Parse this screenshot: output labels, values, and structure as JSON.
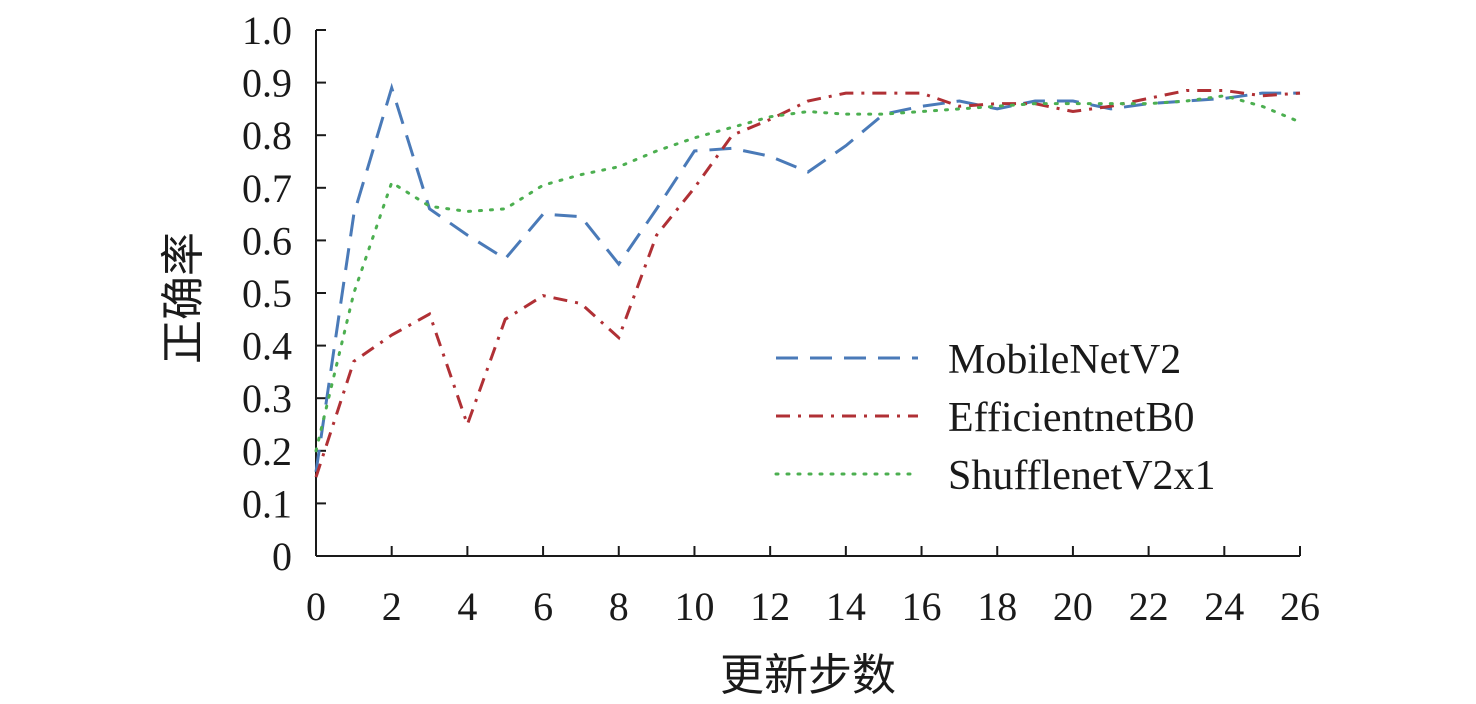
{
  "chart_data": {
    "type": "line",
    "xlabel": "更新步数",
    "ylabel": "正确率",
    "xlim": [
      0,
      26
    ],
    "ylim": [
      0,
      1.0
    ],
    "x_ticks": [
      0,
      2,
      4,
      6,
      8,
      10,
      12,
      14,
      16,
      18,
      20,
      22,
      24,
      26
    ],
    "x_tick_labels": [
      "0",
      "2",
      "4",
      "6",
      "8",
      "10",
      "12",
      "14",
      "16",
      "18",
      "20",
      "22",
      "24",
      "26"
    ],
    "y_ticks": [
      0,
      0.1,
      0.2,
      0.3,
      0.4,
      0.5,
      0.6,
      0.7,
      0.8,
      0.9,
      1.0
    ],
    "y_tick_labels": [
      "0",
      "0.1",
      "0.2",
      "0.3",
      "0.4",
      "0.5",
      "0.6",
      "0.7",
      "0.8",
      "0.9",
      "1.0"
    ],
    "grid": false,
    "legend_position": "right",
    "x": [
      0,
      1,
      2,
      3,
      4,
      5,
      6,
      7,
      8,
      9,
      10,
      11,
      12,
      13,
      14,
      15,
      16,
      17,
      18,
      19,
      20,
      21,
      22,
      23,
      24,
      25,
      26
    ],
    "series": [
      {
        "name": "MobileNetV2",
        "color": "#4a7ab8",
        "dash": "dashed",
        "values": [
          0.16,
          0.65,
          0.89,
          0.66,
          0.61,
          0.565,
          0.65,
          0.645,
          0.555,
          0.66,
          0.77,
          0.775,
          0.76,
          0.73,
          0.78,
          0.84,
          0.855,
          0.865,
          0.85,
          0.865,
          0.865,
          0.85,
          0.86,
          0.865,
          0.87,
          0.88,
          0.88
        ]
      },
      {
        "name": "EfficientnetB0",
        "color": "#b03035",
        "dash": "dashdot",
        "values": [
          0.15,
          0.37,
          0.42,
          0.46,
          0.25,
          0.45,
          0.495,
          0.48,
          0.415,
          0.61,
          0.7,
          0.8,
          0.83,
          0.865,
          0.88,
          0.88,
          0.88,
          0.855,
          0.86,
          0.86,
          0.845,
          0.855,
          0.87,
          0.885,
          0.885,
          0.875,
          0.88
        ]
      },
      {
        "name": "ShufflenetV2x1",
        "color": "#4caf50",
        "dash": "dotted",
        "values": [
          0.2,
          0.5,
          0.71,
          0.665,
          0.655,
          0.66,
          0.705,
          0.725,
          0.74,
          0.77,
          0.795,
          0.815,
          0.835,
          0.845,
          0.84,
          0.84,
          0.845,
          0.85,
          0.855,
          0.86,
          0.86,
          0.86,
          0.86,
          0.865,
          0.875,
          0.855,
          0.825
        ]
      }
    ]
  }
}
